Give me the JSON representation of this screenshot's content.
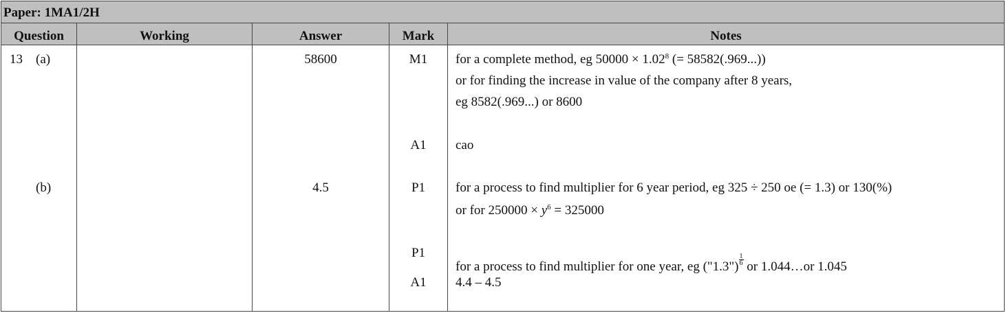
{
  "paper": {
    "title": "Paper: 1MA1/2H"
  },
  "headers": {
    "question": "Question",
    "working": "Working",
    "answer": "Answer",
    "mark": "Mark",
    "notes": "Notes"
  },
  "q13": {
    "number": "13",
    "part_a": {
      "label": "(a)",
      "answer": "58600",
      "mark_1": "M1",
      "note_1a_pre": "for a complete method, eg 50000 × 1.02",
      "note_1a_sup": "8",
      "note_1a_post": " (= 58582(.969...))",
      "note_1b": "or for finding the increase in value of the company after 8 years,",
      "note_1c": "eg 8582(.969...) or 8600",
      "mark_2": "A1",
      "note_2": "cao"
    },
    "part_b": {
      "label": "(b)",
      "answer": "4.5",
      "mark_1": "P1",
      "note_1a": "for a process to find multiplier for 6 year period, eg 325 ÷ 250 oe (= 1.3) or 130(%)",
      "note_1b_pre": "or for 250000 × ",
      "note_1b_var": "y",
      "note_1b_sup": "6",
      "note_1b_post": " = 325000",
      "mark_2": "P1",
      "note_2_pre": "for a process to find multiplier for one year, eg (\"1.3\")",
      "note_2_frac_num": "1",
      "note_2_frac_den": "6",
      "note_2_post": " or 1.044…or 1.045",
      "mark_3": "A1",
      "note_3": "4.4 – 4.5"
    }
  }
}
